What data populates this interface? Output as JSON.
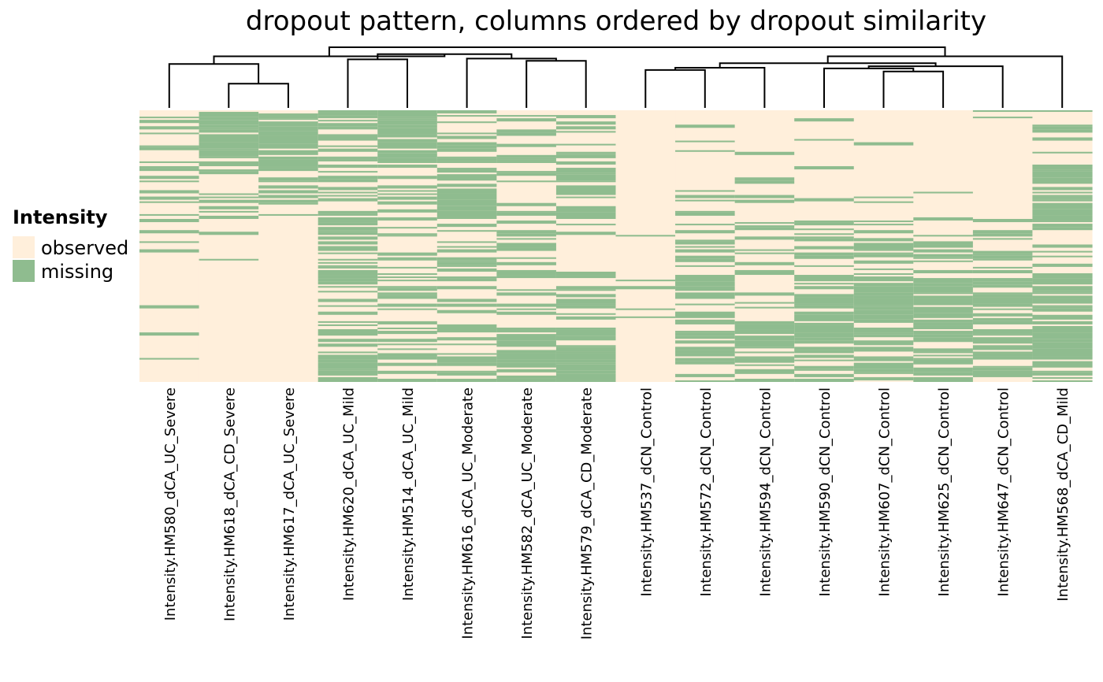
{
  "chart_data": {
    "type": "heatmap",
    "title": "dropout pattern, columns ordered by dropout similarity",
    "legend": {
      "title": "Intensity",
      "position": "left",
      "entries": [
        {
          "label": "observed",
          "color": "#FFEFDB"
        },
        {
          "label": "missing",
          "color": "#8FBC8F"
        }
      ]
    },
    "columns": [
      "Intensity.HM580_dCA_UC_Severe",
      "Intensity.HM618_dCA_CD_Severe",
      "Intensity.HM617_dCA_UC_Severe",
      "Intensity.HM620_dCA_UC_Mild",
      "Intensity.HM514_dCA_UC_Mild",
      "Intensity.HM616_dCA_UC_Moderate",
      "Intensity.HM582_dCA_UC_Moderate",
      "Intensity.HM579_dCA_CD_Moderate",
      "Intensity.HM537_dCN_Control",
      "Intensity.HM572_dCN_Control",
      "Intensity.HM594_dCN_Control",
      "Intensity.HM590_dCN_Control",
      "Intensity.HM607_dCN_Control",
      "Intensity.HM625_dCN_Control",
      "Intensity.HM647_dCN_Control",
      "Intensity.HM568_dCA_CD_Mild"
    ],
    "approx_missing_fraction": [
      0.12,
      0.25,
      0.24,
      0.42,
      0.4,
      0.45,
      0.38,
      0.45,
      0.08,
      0.3,
      0.25,
      0.4,
      0.38,
      0.33,
      0.32,
      0.5
    ],
    "missing_profile": [
      [
        0.2,
        0.25,
        0.1,
        0.05,
        0.05
      ],
      [
        0.8,
        0.5,
        0.05,
        0.0,
        0.0
      ],
      [
        0.85,
        0.45,
        0.0,
        0.0,
        0.0
      ],
      [
        0.35,
        0.4,
        0.45,
        0.4,
        0.6
      ],
      [
        0.6,
        0.35,
        0.25,
        0.45,
        0.4
      ],
      [
        0.3,
        0.55,
        0.45,
        0.5,
        0.55
      ],
      [
        0.3,
        0.2,
        0.4,
        0.35,
        0.6
      ],
      [
        0.25,
        0.6,
        0.25,
        0.4,
        0.75
      ],
      [
        0.0,
        0.0,
        0.05,
        0.15,
        0.05
      ],
      [
        0.05,
        0.15,
        0.3,
        0.55,
        0.35
      ],
      [
        0.05,
        0.05,
        0.4,
        0.25,
        0.55
      ],
      [
        0.1,
        0.05,
        0.45,
        0.6,
        0.65
      ],
      [
        0.05,
        0.05,
        0.35,
        0.6,
        0.65
      ],
      [
        0.05,
        0.05,
        0.4,
        0.55,
        0.6
      ],
      [
        0.1,
        0.0,
        0.4,
        0.45,
        0.55
      ],
      [
        0.15,
        0.6,
        0.3,
        0.55,
        0.8
      ]
    ],
    "dendrogram": {
      "leaves": 16,
      "merges": [
        {
          "left": 1,
          "right": 2,
          "height": 0.32
        },
        {
          "left": 0,
          "right": "m0",
          "height": 0.58
        },
        {
          "left": 3,
          "right": 4,
          "height": 0.64
        },
        {
          "left": 6,
          "right": 7,
          "height": 0.62
        },
        {
          "left": 5,
          "right": "m3",
          "height": 0.65
        },
        {
          "left": "m2",
          "right": "m4",
          "height": 0.71
        },
        {
          "left": "m1",
          "right": "m5",
          "height": 0.68
        },
        {
          "left": 8,
          "right": 9,
          "height": 0.5
        },
        {
          "left": "m7",
          "right": 10,
          "height": 0.53
        },
        {
          "left": 12,
          "right": 13,
          "height": 0.48
        },
        {
          "left": 11,
          "right": "m9",
          "height": 0.52
        },
        {
          "left": "m10",
          "right": 14,
          "height": 0.55
        },
        {
          "left": "m8",
          "right": "m11",
          "height": 0.59
        },
        {
          "left": "m12",
          "right": 15,
          "height": 0.68
        },
        {
          "left": "m6",
          "right": "m13",
          "height": 0.8
        }
      ]
    }
  }
}
